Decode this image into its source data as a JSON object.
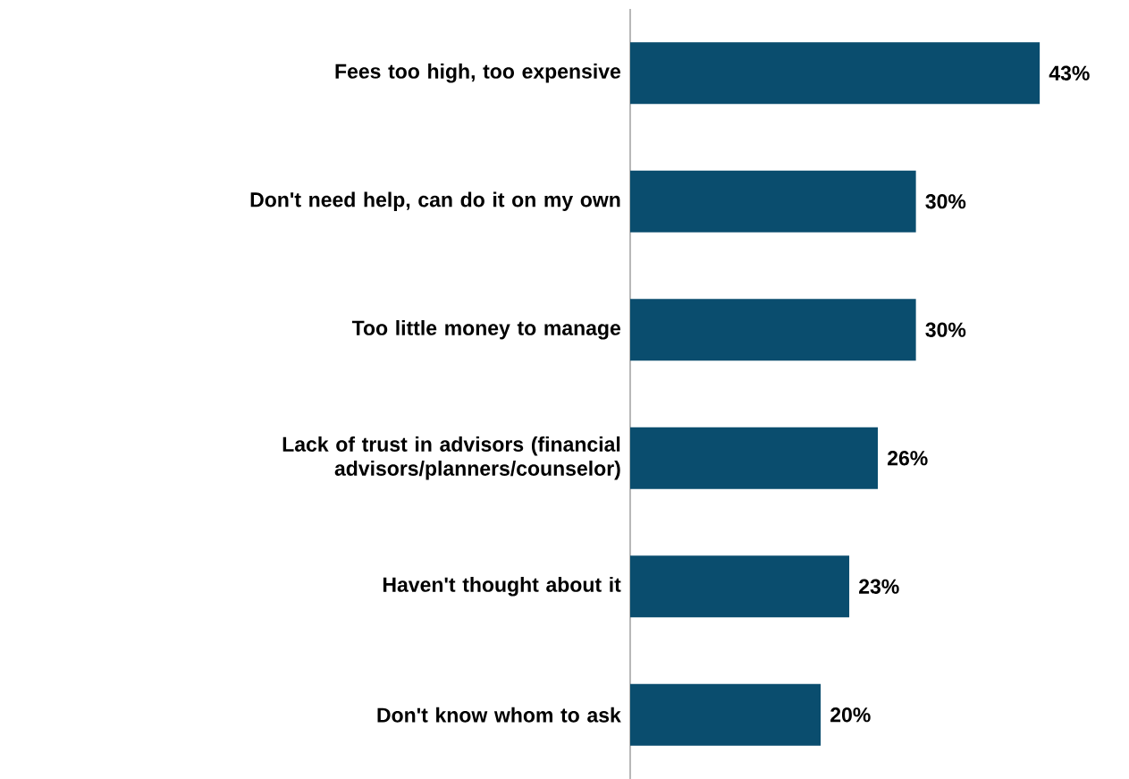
{
  "chart_data": {
    "type": "bar",
    "orientation": "horizontal",
    "categories": [
      "Fees too high, too expensive",
      "Don't need help, can do it on my own",
      "Too little money to manage",
      "Lack of trust in advisors (financial advisors/planners/counselor)",
      "Haven't thought about it",
      "Don't know whom to ask"
    ],
    "values": [
      43,
      30,
      30,
      26,
      23,
      20
    ],
    "value_labels": [
      "43%",
      "30%",
      "30%",
      "26%",
      "23%",
      "20%"
    ],
    "color": "#0a4d6e"
  }
}
